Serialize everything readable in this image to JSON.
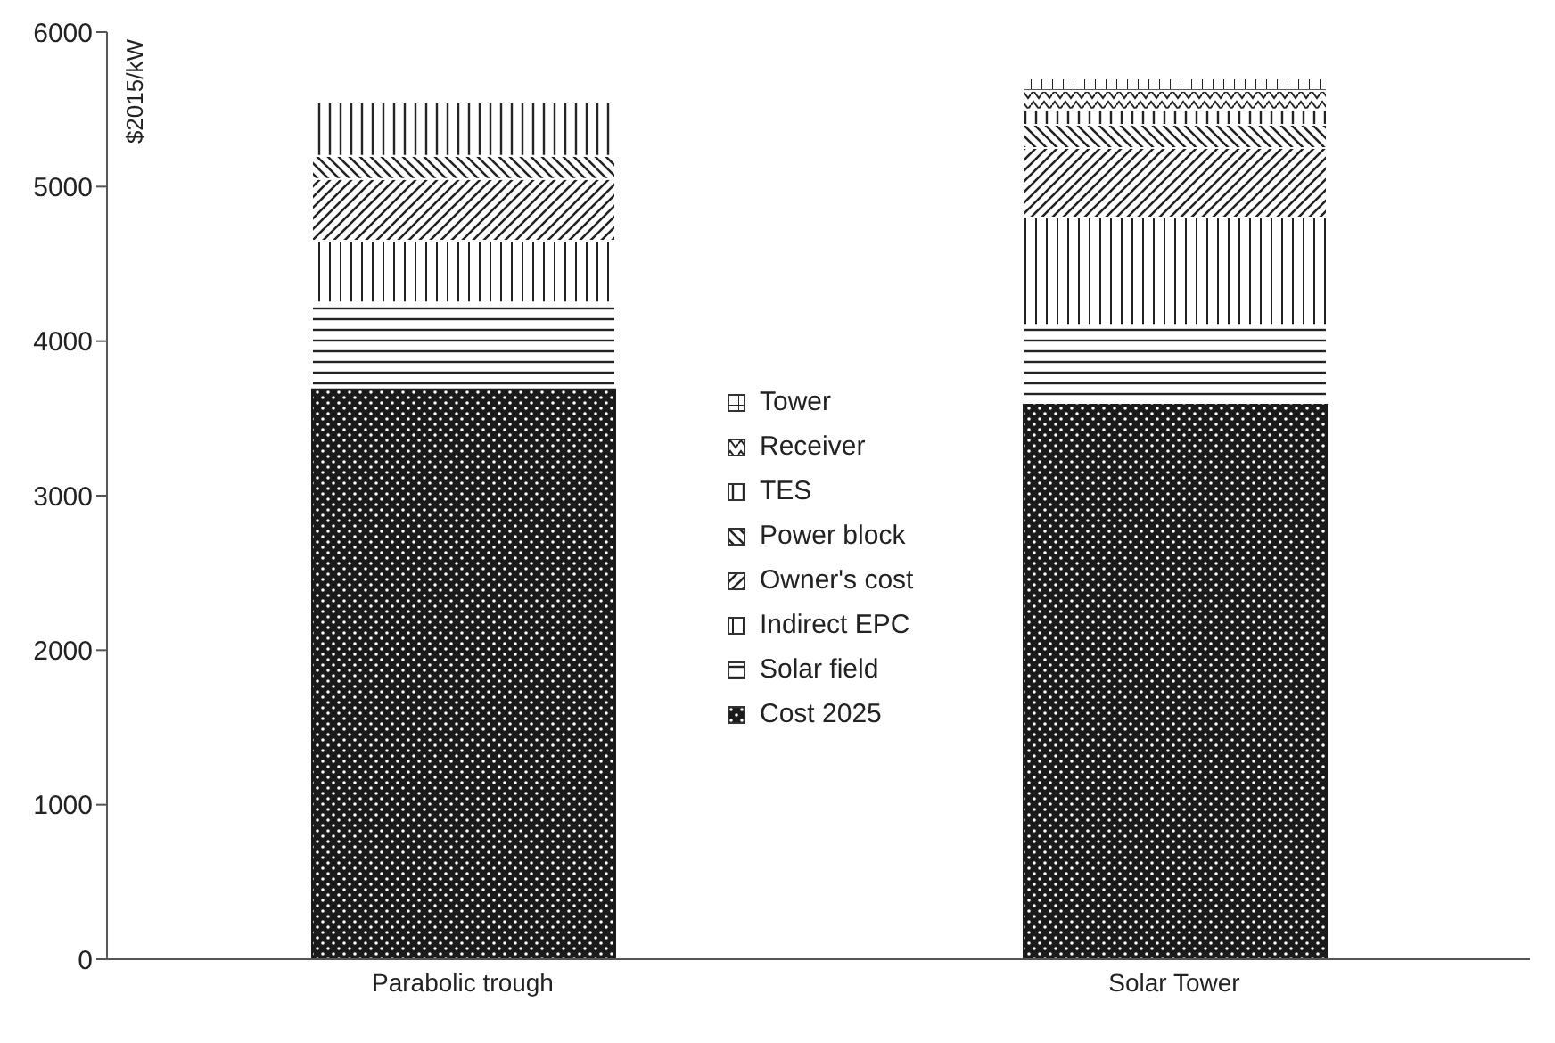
{
  "chart_data": {
    "type": "bar",
    "stacked": true,
    "ylabel": "$2015/kW",
    "categories": [
      "Parabolic trough",
      "Solar Tower"
    ],
    "series": [
      {
        "name": "Cost 2025",
        "color": "#1a1a1a",
        "values": [
          3700,
          3600
        ]
      },
      {
        "name": "Solar field",
        "color": "#ffffff",
        "values": [
          550,
          500
        ]
      },
      {
        "name": "Indirect EPC",
        "color": "#ffffff",
        "values": [
          400,
          700
        ]
      },
      {
        "name": "Owner's cost",
        "color": "#ffffff",
        "values": [
          400,
          450
        ]
      },
      {
        "name": "Power block",
        "color": "#ffffff",
        "values": [
          150,
          150
        ]
      },
      {
        "name": "TES",
        "color": "#ffffff",
        "values": [
          350,
          100
        ]
      },
      {
        "name": "Receiver",
        "color": "#ffffff",
        "values": [
          0,
          120
        ]
      },
      {
        "name": "Tower",
        "color": "#ffffff",
        "values": [
          0,
          80
        ]
      }
    ],
    "ylim": [
      0,
      6000
    ],
    "yticks": [
      0,
      1000,
      2000,
      3000,
      4000,
      5000,
      6000
    ],
    "grid": false,
    "legend": "center"
  }
}
